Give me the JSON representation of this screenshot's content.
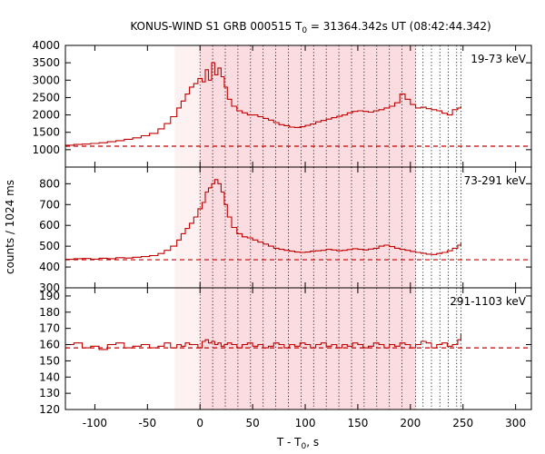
{
  "chart_data": {
    "type": "line",
    "title": "KONUS-WIND S1 GRB 000515 T",
    "title_sub": "0",
    "title_rest": " = 31364.342s UT (08:42:44.342)",
    "xlabel": "T - T",
    "xlabel_sub": "0",
    "xlabel_rest": ", s",
    "ylabel": "counts / 1024 ms",
    "xlim": [
      -128,
      315
    ],
    "xticks": [
      -100,
      -50,
      0,
      50,
      100,
      150,
      200,
      250,
      300
    ],
    "colors": {
      "series": "#c00000",
      "shade_outer": "#fde6e6",
      "shade_inner": "#f8c0c6"
    },
    "shaded_regions": [
      {
        "from": -24,
        "to": 0,
        "shade": "outer"
      },
      {
        "from": 0,
        "to": 205,
        "shade": "inner"
      },
      {
        "from": 205,
        "to": 248,
        "shade": "none"
      }
    ],
    "dotted_lines_x": [
      0,
      12,
      24,
      36,
      48,
      60,
      72,
      84,
      96,
      108,
      120,
      132,
      144,
      156,
      168,
      180,
      192,
      205,
      212,
      220,
      228,
      236,
      244,
      248
    ],
    "panels": [
      {
        "band": "19-73 keV",
        "ylim": [
          500,
          4000
        ],
        "yticks": [
          1000,
          1500,
          2000,
          2500,
          3000,
          3500,
          4000
        ],
        "background": 1100,
        "series": {
          "name": "19-73 keV",
          "points": [
            [
              -128,
              1130
            ],
            [
              -120,
              1150
            ],
            [
              -112,
              1160
            ],
            [
              -104,
              1180
            ],
            [
              -96,
              1200
            ],
            [
              -88,
              1230
            ],
            [
              -80,
              1260
            ],
            [
              -72,
              1300
            ],
            [
              -64,
              1340
            ],
            [
              -56,
              1400
            ],
            [
              -48,
              1470
            ],
            [
              -40,
              1600
            ],
            [
              -34,
              1750
            ],
            [
              -28,
              1950
            ],
            [
              -22,
              2200
            ],
            [
              -18,
              2400
            ],
            [
              -14,
              2600
            ],
            [
              -10,
              2800
            ],
            [
              -6,
              2900
            ],
            [
              -2,
              3050
            ],
            [
              2,
              2950
            ],
            [
              5,
              3300
            ],
            [
              8,
              3000
            ],
            [
              11,
              3500
            ],
            [
              14,
              3150
            ],
            [
              17,
              3350
            ],
            [
              20,
              3100
            ],
            [
              23,
              2800
            ],
            [
              26,
              2450
            ],
            [
              30,
              2250
            ],
            [
              35,
              2120
            ],
            [
              40,
              2060
            ],
            [
              45,
              2000
            ],
            [
              50,
              2000
            ],
            [
              55,
              1950
            ],
            [
              60,
              1900
            ],
            [
              65,
              1850
            ],
            [
              70,
              1780
            ],
            [
              75,
              1720
            ],
            [
              80,
              1690
            ],
            [
              85,
              1650
            ],
            [
              90,
              1640
            ],
            [
              95,
              1660
            ],
            [
              100,
              1700
            ],
            [
              105,
              1740
            ],
            [
              110,
              1800
            ],
            [
              115,
              1840
            ],
            [
              120,
              1880
            ],
            [
              125,
              1920
            ],
            [
              130,
              1960
            ],
            [
              135,
              2000
            ],
            [
              140,
              2060
            ],
            [
              145,
              2100
            ],
            [
              150,
              2120
            ],
            [
              155,
              2100
            ],
            [
              160,
              2080
            ],
            [
              165,
              2120
            ],
            [
              170,
              2150
            ],
            [
              175,
              2200
            ],
            [
              180,
              2250
            ],
            [
              185,
              2350
            ],
            [
              190,
              2600
            ],
            [
              195,
              2450
            ],
            [
              200,
              2300
            ],
            [
              205,
              2200
            ],
            [
              210,
              2220
            ],
            [
              215,
              2180
            ],
            [
              220,
              2150
            ],
            [
              225,
              2120
            ],
            [
              230,
              2050
            ],
            [
              235,
              2000
            ],
            [
              240,
              2150
            ],
            [
              245,
              2200
            ],
            [
              248,
              2250
            ]
          ]
        }
      },
      {
        "band": "73-291 keV",
        "ylim": [
          300,
          880
        ],
        "yticks": [
          300,
          400,
          500,
          600,
          700,
          800
        ],
        "background": 435,
        "series": {
          "name": "73-291 keV",
          "points": [
            [
              -128,
              437
            ],
            [
              -120,
              440
            ],
            [
              -112,
              441
            ],
            [
              -104,
              438
            ],
            [
              -96,
              442
            ],
            [
              -88,
              440
            ],
            [
              -80,
              445
            ],
            [
              -72,
              443
            ],
            [
              -64,
              447
            ],
            [
              -56,
              450
            ],
            [
              -48,
              455
            ],
            [
              -40,
              465
            ],
            [
              -34,
              480
            ],
            [
              -28,
              500
            ],
            [
              -22,
              530
            ],
            [
              -18,
              560
            ],
            [
              -14,
              585
            ],
            [
              -10,
              610
            ],
            [
              -6,
              640
            ],
            [
              -2,
              680
            ],
            [
              2,
              710
            ],
            [
              5,
              760
            ],
            [
              8,
              780
            ],
            [
              11,
              800
            ],
            [
              14,
              820
            ],
            [
              17,
              800
            ],
            [
              20,
              760
            ],
            [
              23,
              700
            ],
            [
              26,
              640
            ],
            [
              30,
              590
            ],
            [
              35,
              560
            ],
            [
              40,
              545
            ],
            [
              45,
              540
            ],
            [
              50,
              530
            ],
            [
              55,
              520
            ],
            [
              60,
              510
            ],
            [
              65,
              500
            ],
            [
              70,
              490
            ],
            [
              75,
              485
            ],
            [
              80,
              480
            ],
            [
              85,
              476
            ],
            [
              90,
              472
            ],
            [
              95,
              470
            ],
            [
              100,
              472
            ],
            [
              105,
              476
            ],
            [
              110,
              478
            ],
            [
              115,
              480
            ],
            [
              120,
              485
            ],
            [
              125,
              482
            ],
            [
              130,
              478
            ],
            [
              135,
              480
            ],
            [
              140,
              484
            ],
            [
              145,
              488
            ],
            [
              150,
              485
            ],
            [
              155,
              482
            ],
            [
              160,
              486
            ],
            [
              165,
              490
            ],
            [
              170,
              500
            ],
            [
              175,
              505
            ],
            [
              180,
              498
            ],
            [
              185,
              490
            ],
            [
              190,
              485
            ],
            [
              195,
              480
            ],
            [
              200,
              475
            ],
            [
              205,
              470
            ],
            [
              210,
              466
            ],
            [
              215,
              462
            ],
            [
              220,
              460
            ],
            [
              225,
              465
            ],
            [
              230,
              470
            ],
            [
              235,
              478
            ],
            [
              240,
              490
            ],
            [
              245,
              505
            ],
            [
              248,
              520
            ]
          ]
        }
      },
      {
        "band": "291-1103 keV",
        "ylim": [
          120,
          195
        ],
        "yticks": [
          120,
          130,
          140,
          150,
          160,
          170,
          180,
          190
        ],
        "background": 158,
        "series": {
          "name": "291-1103 keV",
          "points": [
            [
              -128,
              160
            ],
            [
              -120,
              161
            ],
            [
              -112,
              158
            ],
            [
              -104,
              159
            ],
            [
              -96,
              157
            ],
            [
              -88,
              160
            ],
            [
              -80,
              161
            ],
            [
              -72,
              158
            ],
            [
              -64,
              159
            ],
            [
              -56,
              160
            ],
            [
              -48,
              158
            ],
            [
              -40,
              159
            ],
            [
              -34,
              161
            ],
            [
              -28,
              158
            ],
            [
              -22,
              160
            ],
            [
              -18,
              159
            ],
            [
              -14,
              161
            ],
            [
              -10,
              160
            ],
            [
              -6,
              160
            ],
            [
              -2,
              158
            ],
            [
              2,
              162
            ],
            [
              5,
              163
            ],
            [
              8,
              161
            ],
            [
              11,
              162
            ],
            [
              14,
              160
            ],
            [
              17,
              161
            ],
            [
              20,
              159
            ],
            [
              23,
              160
            ],
            [
              26,
              161
            ],
            [
              30,
              160
            ],
            [
              35,
              158
            ],
            [
              40,
              160
            ],
            [
              45,
              161
            ],
            [
              50,
              159
            ],
            [
              55,
              160
            ],
            [
              60,
              158
            ],
            [
              65,
              159
            ],
            [
              70,
              161
            ],
            [
              75,
              160
            ],
            [
              80,
              158
            ],
            [
              85,
              160
            ],
            [
              90,
              159
            ],
            [
              95,
              161
            ],
            [
              100,
              160
            ],
            [
              105,
              158
            ],
            [
              110,
              160
            ],
            [
              115,
              161
            ],
            [
              120,
              159
            ],
            [
              125,
              160
            ],
            [
              130,
              158
            ],
            [
              135,
              160
            ],
            [
              140,
              159
            ],
            [
              145,
              161
            ],
            [
              150,
              160
            ],
            [
              155,
              158
            ],
            [
              160,
              159
            ],
            [
              165,
              161
            ],
            [
              170,
              160
            ],
            [
              175,
              158
            ],
            [
              180,
              160
            ],
            [
              185,
              159
            ],
            [
              190,
              161
            ],
            [
              195,
              160
            ],
            [
              200,
              158
            ],
            [
              205,
              160
            ],
            [
              210,
              162
            ],
            [
              215,
              161
            ],
            [
              220,
              158
            ],
            [
              225,
              160
            ],
            [
              230,
              161
            ],
            [
              235,
              159
            ],
            [
              240,
              160
            ],
            [
              245,
              163
            ],
            [
              248,
              167
            ]
          ]
        }
      }
    ]
  }
}
